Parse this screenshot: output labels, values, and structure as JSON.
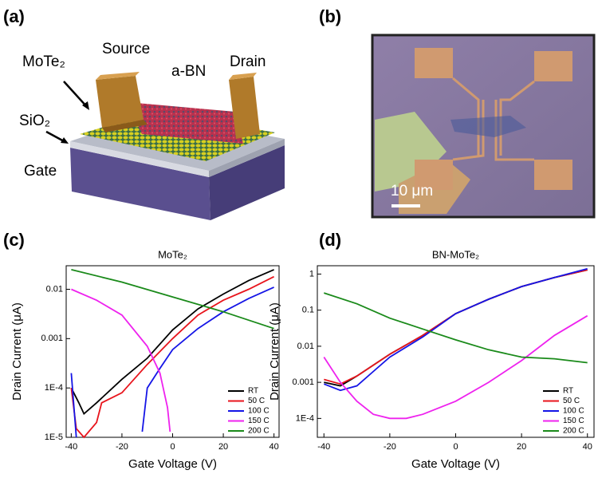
{
  "figure": {
    "panel_labels": [
      "(a)",
      "(b)",
      "(c)",
      "(d)"
    ],
    "schematic": {
      "mote2": "MoTe₂",
      "source": "Source",
      "a_bn": "a-BN",
      "drain": "Drain",
      "sio2": "SiO₂",
      "gate": "Gate"
    },
    "micrograph": {
      "scale_bar": "10 μm"
    }
  },
  "chart_data": [
    {
      "type": "line",
      "title": "MoTe₂",
      "x_label": "Gate Voltage (V)",
      "y_label": "Drain Current (μA)",
      "log_y": true,
      "xlim": [
        -42,
        42
      ],
      "xticks": [
        -40,
        -20,
        0,
        20,
        40
      ],
      "ylim": [
        1e-05,
        0.03
      ],
      "yticks": [
        {
          "value": 1e-05,
          "label": "1E-5"
        },
        {
          "value": 0.0001,
          "label": "1E-4"
        },
        0.001,
        0.01
      ],
      "legend": "lower right",
      "series": [
        {
          "name": "RT",
          "color": "#000000",
          "x": [
            -40,
            -37,
            -35,
            -30,
            -20,
            -10,
            0,
            10,
            20,
            30,
            40
          ],
          "values": [
            0.0001,
            5e-05,
            3e-05,
            5e-05,
            0.00015,
            0.0004,
            0.0015,
            0.004,
            0.008,
            0.015,
            0.025
          ]
        },
        {
          "name": "50 C",
          "color": "#e8141c",
          "x": [
            -40,
            -38,
            -35,
            -30,
            -28,
            -20,
            -10,
            0,
            10,
            20,
            30,
            40
          ],
          "values": [
            0.0001,
            1.5e-05,
            1e-05,
            2e-05,
            5e-05,
            8e-05,
            0.0003,
            0.001,
            0.003,
            0.006,
            0.01,
            0.018
          ]
        },
        {
          "name": "100 C",
          "color": "#1515e6",
          "x": [
            -40,
            -38,
            -25,
            -12,
            -10,
            -5,
            0,
            10,
            20,
            30,
            40
          ],
          "values": [
            0.0002,
            1e-05,
            null,
            1.3e-05,
            0.0001,
            0.00025,
            0.0006,
            0.0016,
            0.0035,
            0.0065,
            0.011
          ]
        },
        {
          "name": "150 C",
          "color": "#ee22ee",
          "x": [
            -40,
            -30,
            -20,
            -10,
            -5,
            -2,
            -1
          ],
          "values": [
            0.01,
            0.006,
            0.003,
            0.0007,
            0.0002,
            4e-05,
            1.3e-05
          ]
        },
        {
          "name": "200 C",
          "color": "#1a8a1a",
          "x": [
            -40,
            -20,
            0,
            20,
            40
          ],
          "values": [
            0.025,
            0.014,
            0.007,
            0.0035,
            0.0016
          ]
        }
      ]
    },
    {
      "type": "line",
      "title": "BN-MoTe₂",
      "x_label": "Gate Voltage (V)",
      "y_label": "Drain Current (μA)",
      "log_y": true,
      "xlim": [
        -42,
        42
      ],
      "xticks": [
        -40,
        -20,
        0,
        20,
        40
      ],
      "ylim": [
        3e-05,
        1.7
      ],
      "yticks": [
        {
          "value": 0.0001,
          "label": "1E-4"
        },
        0.001,
        0.01,
        0.1,
        1
      ],
      "legend": "lower right",
      "series": [
        {
          "name": "RT",
          "color": "#000000",
          "x": [
            -40,
            -35,
            -30,
            -20,
            -10,
            0,
            10,
            20,
            30,
            40
          ],
          "values": [
            0.001,
            0.0008,
            0.0015,
            0.006,
            0.02,
            0.08,
            0.2,
            0.45,
            0.8,
            1.3
          ]
        },
        {
          "name": "50 C",
          "color": "#e8141c",
          "x": [
            -40,
            -35,
            -30,
            -20,
            -10,
            0,
            10,
            20,
            30,
            40
          ],
          "values": [
            0.0012,
            0.0009,
            0.0015,
            0.006,
            0.02,
            0.08,
            0.2,
            0.45,
            0.8,
            1.3
          ]
        },
        {
          "name": "100 C",
          "color": "#1515e6",
          "x": [
            -40,
            -35,
            -30,
            -25,
            -20,
            -10,
            0,
            10,
            20,
            30,
            40
          ],
          "values": [
            0.0009,
            0.0006,
            0.0008,
            0.002,
            0.005,
            0.018,
            0.08,
            0.2,
            0.45,
            0.8,
            1.4
          ]
        },
        {
          "name": "150 C",
          "color": "#ee22ee",
          "x": [
            -40,
            -35,
            -30,
            -25,
            -20,
            -15,
            -10,
            0,
            10,
            20,
            30,
            40
          ],
          "values": [
            0.005,
            0.001,
            0.0003,
            0.00013,
            0.0001,
            0.0001,
            0.00013,
            0.0003,
            0.001,
            0.004,
            0.02,
            0.07
          ]
        },
        {
          "name": "200 C",
          "color": "#1a8a1a",
          "x": [
            -40,
            -30,
            -20,
            -10,
            0,
            10,
            20,
            30,
            40
          ],
          "values": [
            0.3,
            0.15,
            0.06,
            0.03,
            0.015,
            0.008,
            0.005,
            0.0045,
            0.0035
          ]
        }
      ]
    }
  ]
}
